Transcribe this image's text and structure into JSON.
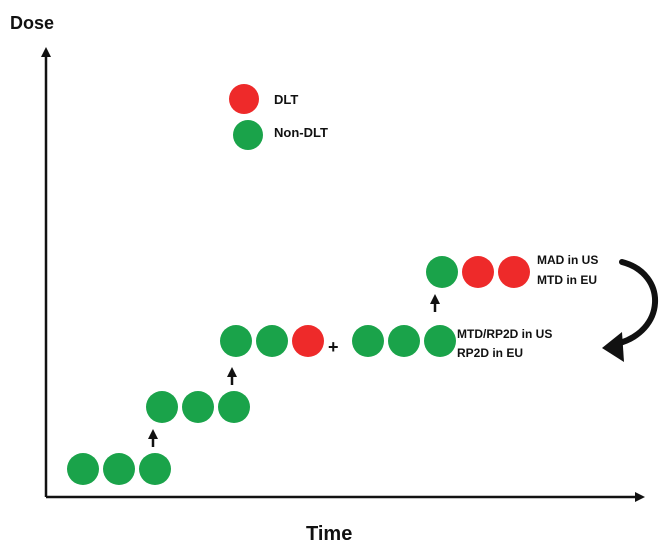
{
  "axes": {
    "y_label": "Dose",
    "x_label": "Time"
  },
  "legend": [
    {
      "status": "DLT",
      "label": "DLT"
    },
    {
      "status": "Non-DLT",
      "label": "Non-DLT"
    }
  ],
  "colors": {
    "dlt": "#ee2a2a",
    "non_dlt": "#1aa34a",
    "axis": "#111111"
  },
  "dose_levels": [
    {
      "level": 1,
      "cohorts": [
        [
          "Non-DLT",
          "Non-DLT",
          "Non-DLT"
        ]
      ]
    },
    {
      "level": 2,
      "cohorts": [
        [
          "Non-DLT",
          "Non-DLT",
          "Non-DLT"
        ]
      ]
    },
    {
      "level": 3,
      "cohorts": [
        [
          "Non-DLT",
          "Non-DLT",
          "DLT"
        ],
        [
          "Non-DLT",
          "Non-DLT",
          "Non-DLT"
        ]
      ],
      "joiner": "+"
    },
    {
      "level": 4,
      "cohorts": [
        [
          "Non-DLT",
          "DLT",
          "DLT"
        ]
      ]
    }
  ],
  "annotations": {
    "level3": [
      "MTD/RP2D in US",
      "RP2D in EU"
    ],
    "level4": [
      "MAD in US",
      "MTD in EU"
    ]
  }
}
